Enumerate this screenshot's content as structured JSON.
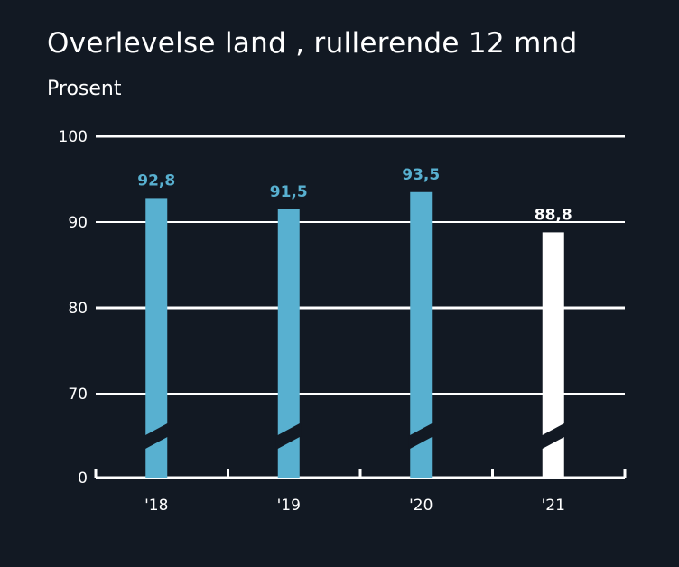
{
  "title": "Overlevelse land , rullerende 12 mnd",
  "subtitle": "Prosent",
  "colors": {
    "background": "#121923",
    "bar": "#58b0d0",
    "highlight_bar": "#ffffff",
    "grid": "#ffffff",
    "text": "#ffffff"
  },
  "chart_data": {
    "type": "bar",
    "title": "Overlevelse land , rullerende 12 mnd",
    "subtitle": "Prosent",
    "categories": [
      "'18",
      "'19",
      "'20",
      "'21"
    ],
    "values": [
      92.8,
      91.5,
      93.5,
      88.8
    ],
    "data_labels": [
      "92,8",
      "91,5",
      "93,5",
      "88,8"
    ],
    "highlight_index": 3,
    "y_ticks": [
      0,
      70,
      80,
      90,
      100
    ],
    "y_tick_labels": [
      "0",
      "70",
      "80",
      "90",
      "100"
    ],
    "ylim": [
      0,
      100
    ],
    "axis_break": true,
    "grid": true
  }
}
